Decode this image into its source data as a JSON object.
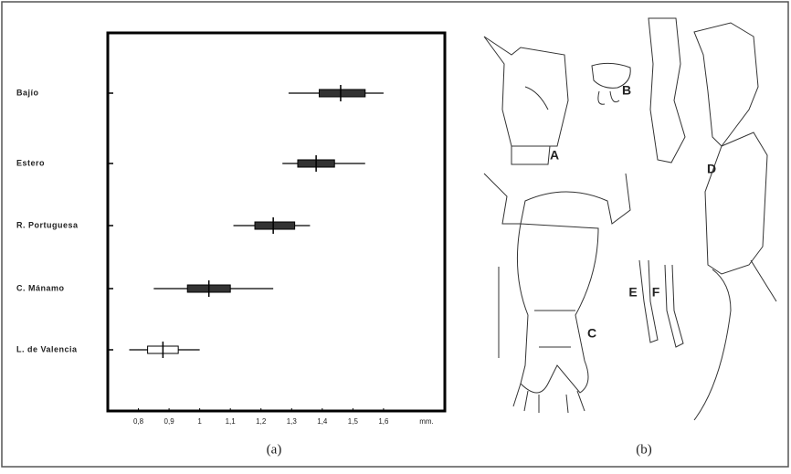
{
  "chart_data": {
    "type": "range",
    "categories": [
      "Bajío",
      "Estero",
      "R. Portuguesa",
      "C. Mánamo",
      "L. de Valencia"
    ],
    "min": [
      1.29,
      1.27,
      1.11,
      0.85,
      0.77
    ],
    "max": [
      1.6,
      1.54,
      1.36,
      1.24,
      1.0
    ],
    "box_low": [
      1.39,
      1.32,
      1.18,
      0.96,
      0.83
    ],
    "box_high": [
      1.54,
      1.44,
      1.31,
      1.1,
      0.93
    ],
    "mean": [
      1.46,
      1.38,
      1.24,
      1.03,
      0.88
    ],
    "color": "#333333",
    "xlim": [
      0.7,
      1.8
    ],
    "xticks": [
      {
        "value": 0.8,
        "label": "0,8"
      },
      {
        "value": 0.9,
        "label": "0,9"
      },
      1,
      {
        "value": 1.1,
        "label": "1,1"
      },
      {
        "value": 1.2,
        "label": "1,2"
      },
      {
        "value": 1.3,
        "label": "1,3"
      },
      {
        "value": 1.4,
        "label": "1,4"
      },
      {
        "value": 1.5,
        "label": "1,5"
      },
      {
        "value": 1.6,
        "label": "1,6"
      }
    ],
    "x_unit": "mm.",
    "panel_label": "(a)"
  },
  "figure_b": {
    "panel_label": "(b)",
    "parts": [
      "A",
      "B",
      "C",
      "D",
      "E",
      "F"
    ]
  }
}
